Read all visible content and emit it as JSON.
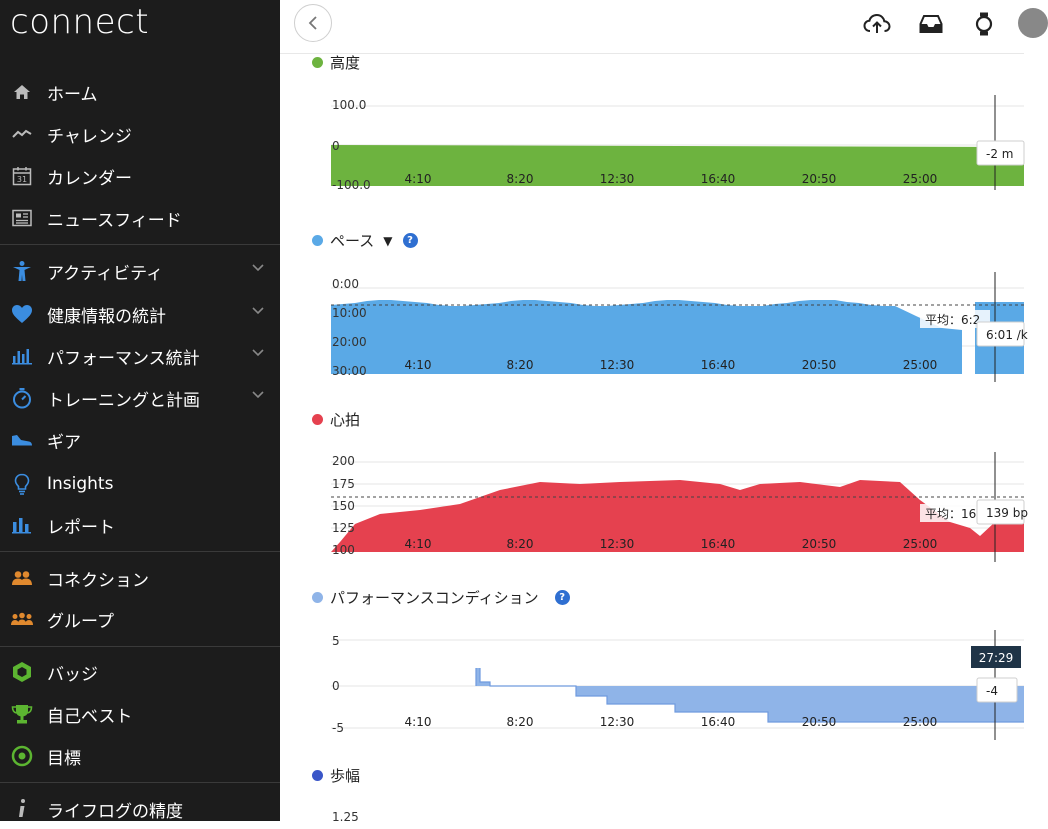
{
  "app": {
    "logo": "connect"
  },
  "sidebar": {
    "items": [
      {
        "label": "ホーム",
        "icon": "home-icon"
      },
      {
        "label": "チャレンジ",
        "icon": "challenge-icon"
      },
      {
        "label": "カレンダー",
        "icon": "calendar-icon",
        "icon_text": "31"
      },
      {
        "label": "ニュースフィード",
        "icon": "newsfeed-icon"
      },
      {
        "label": "アクティビティ",
        "icon": "activity-icon",
        "expandable": true
      },
      {
        "label": "健康情報の統計",
        "icon": "heart-icon",
        "expandable": true
      },
      {
        "label": "パフォーマンス統計",
        "icon": "performance-icon",
        "expandable": true
      },
      {
        "label": "トレーニングと計画",
        "icon": "stopwatch-icon",
        "expandable": true
      },
      {
        "label": "ギア",
        "icon": "shoe-icon"
      },
      {
        "label": "Insights",
        "icon": "lightbulb-icon"
      },
      {
        "label": "レポート",
        "icon": "report-icon"
      },
      {
        "label": "コネクション",
        "icon": "connections-icon"
      },
      {
        "label": "グループ",
        "icon": "groups-icon"
      },
      {
        "label": "バッジ",
        "icon": "badge-icon"
      },
      {
        "label": "自己ベスト",
        "icon": "trophy-icon"
      },
      {
        "label": "目標",
        "icon": "target-icon"
      },
      {
        "label": "ライフログの精度",
        "icon": "info-icon"
      }
    ],
    "colors": {
      "blue": "#3b8de0",
      "orange": "#e0892e",
      "green": "#5cb531"
    }
  },
  "topbar": {
    "icons": [
      "back-icon",
      "upload-cloud-icon",
      "inbox-icon",
      "watch-icon",
      "avatar"
    ]
  },
  "x_ticks": [
    "4:10",
    "8:20",
    "12:30",
    "16:40",
    "20:50",
    "25:00"
  ],
  "charts": {
    "elevation": {
      "title": "高度",
      "color": "#6db33f",
      "y_ticks": [
        "100.0",
        "0",
        "-100.0"
      ],
      "tooltip": "-2 m"
    },
    "pace": {
      "title": "ペース",
      "dropdown": "▼",
      "color": "#5aa9e6",
      "y_ticks": [
        "0:00",
        "10:00",
        "20:00",
        "30:00"
      ],
      "avg_label": "平均：6:2",
      "tooltip": "6:01 /k"
    },
    "heart_rate": {
      "title": "心拍",
      "color": "#e5414f",
      "y_ticks": [
        "200",
        "175",
        "150",
        "125",
        "100"
      ],
      "avg_label": "平均：16",
      "tooltip": "139 bp"
    },
    "performance_condition": {
      "title": "パフォーマンスコンディション",
      "color": "#8fb4e8",
      "y_ticks": [
        "5",
        "0",
        "-5"
      ],
      "time_badge": "27:29",
      "tooltip": "-4"
    },
    "stride": {
      "title": "歩幅",
      "color": "#3a56c8",
      "y_ticks": [
        "1.25"
      ]
    }
  }
}
